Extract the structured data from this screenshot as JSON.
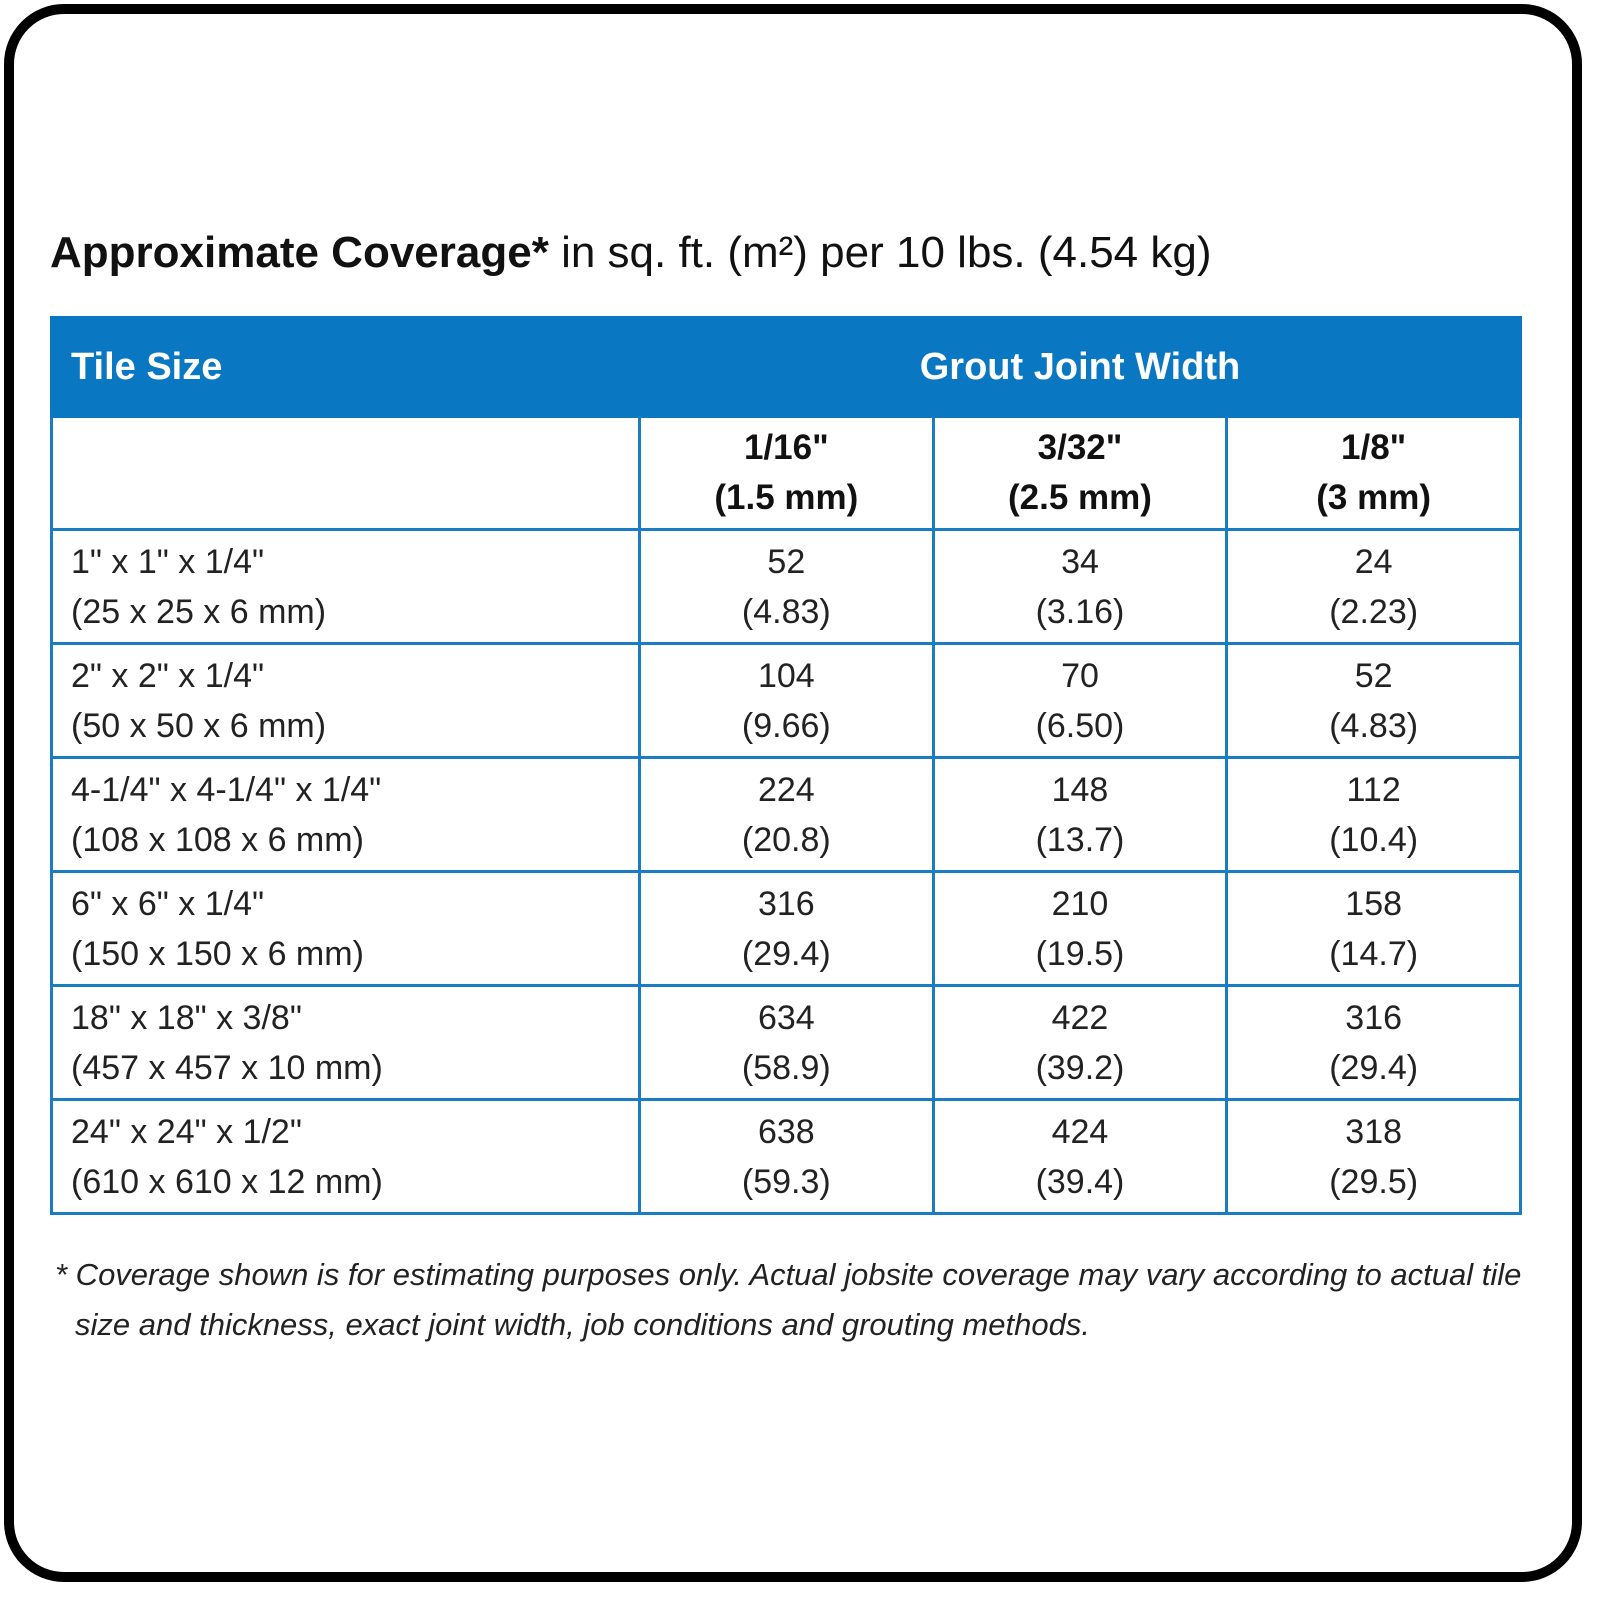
{
  "header": {
    "title_bold": "Approximate Coverage*",
    "title_rest": "in sq. ft. (m²) per 10 lbs. (4.54 kg)"
  },
  "table": {
    "header": {
      "tile_size": "Tile Size",
      "grout_joint_width": "Grout Joint Width"
    },
    "columns": [
      [
        "1/16\"",
        "(1.5 mm)"
      ],
      [
        "3/32\"",
        "(2.5 mm)"
      ],
      [
        "1/8\"",
        "(3 mm)"
      ]
    ],
    "rows": [
      {
        "size": [
          "1\" x 1\" x 1/4\"",
          "(25 x 25 x 6 mm)"
        ],
        "cells": [
          [
            "52",
            "(4.83)"
          ],
          [
            "34",
            "(3.16)"
          ],
          [
            "24",
            "(2.23)"
          ]
        ]
      },
      {
        "size": [
          "2\" x 2\" x 1/4\"",
          "(50 x 50 x 6 mm)"
        ],
        "cells": [
          [
            "104",
            "(9.66)"
          ],
          [
            "70",
            "(6.50)"
          ],
          [
            "52",
            "(4.83)"
          ]
        ]
      },
      {
        "size": [
          "4-1/4\" x 4-1/4\" x 1/4\"",
          "(108 x 108 x 6 mm)"
        ],
        "cells": [
          [
            "224",
            "(20.8)"
          ],
          [
            "148",
            "(13.7)"
          ],
          [
            "112",
            "(10.4)"
          ]
        ]
      },
      {
        "size": [
          "6\" x 6\" x 1/4\"",
          "(150 x 150 x 6 mm)"
        ],
        "cells": [
          [
            "316",
            "(29.4)"
          ],
          [
            "210",
            "(19.5)"
          ],
          [
            "158",
            "(14.7)"
          ]
        ]
      },
      {
        "size": [
          "18\" x 18\" x 3/8\"",
          "(457 x 457 x 10 mm)"
        ],
        "cells": [
          [
            "634",
            "(58.9)"
          ],
          [
            "422",
            "(39.2)"
          ],
          [
            "316",
            "(29.4)"
          ]
        ]
      },
      {
        "size": [
          "24\" x 24\" x 1/2\"",
          "(610 x 610 x 12 mm)"
        ],
        "cells": [
          [
            "638",
            "(59.3)"
          ],
          [
            "424",
            "(39.4)"
          ],
          [
            "318",
            "(29.5)"
          ]
        ]
      }
    ]
  },
  "footnote": [
    "* Coverage shown is for estimating purposes only. Actual jobsite coverage may vary according to actual tile",
    "size and thickness, exact joint width, job conditions and grouting methods."
  ]
}
